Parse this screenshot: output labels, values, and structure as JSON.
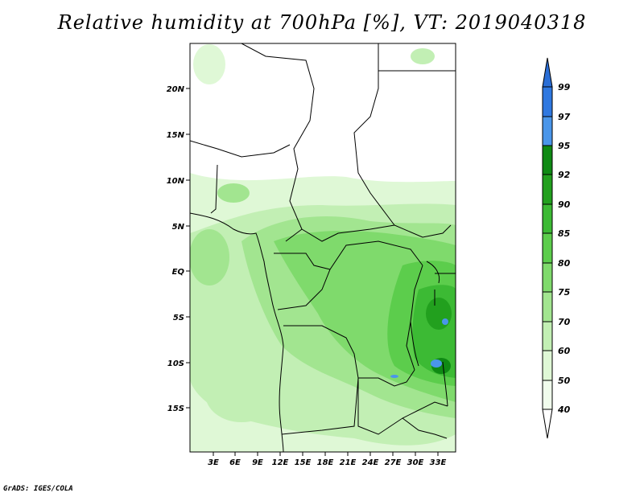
{
  "title": "Relative humidity at 700hPa [%], VT: 2019040318",
  "credit": "GrADS: IGES/COLA",
  "map": {
    "lat_labels": [
      "20N",
      "15N",
      "10N",
      "5N",
      "EQ",
      "5S",
      "10S",
      "15S"
    ],
    "lon_labels": [
      "3E",
      "6E",
      "9E",
      "12E",
      "15E",
      "18E",
      "21E",
      "24E",
      "27E",
      "30E",
      "33E"
    ]
  },
  "colorbar": {
    "levels": [
      "99",
      "97",
      "95",
      "92",
      "90",
      "85",
      "80",
      "75",
      "70",
      "60",
      "50",
      "40"
    ],
    "colors": {
      "above_99": "#2a6ed6",
      "97_99": "#2f78e0",
      "95_97": "#4a96ea",
      "92_95": "#0f8a14",
      "90_92": "#22a01e",
      "85_90": "#3cba34",
      "80_85": "#5ccd4c",
      "75_80": "#7fda6c",
      "70_75": "#a2e590",
      "60_70": "#c2efb4",
      "50_60": "#dff8d6",
      "40_50": "#f0fcec",
      "below_40": "#ffffff"
    }
  }
}
